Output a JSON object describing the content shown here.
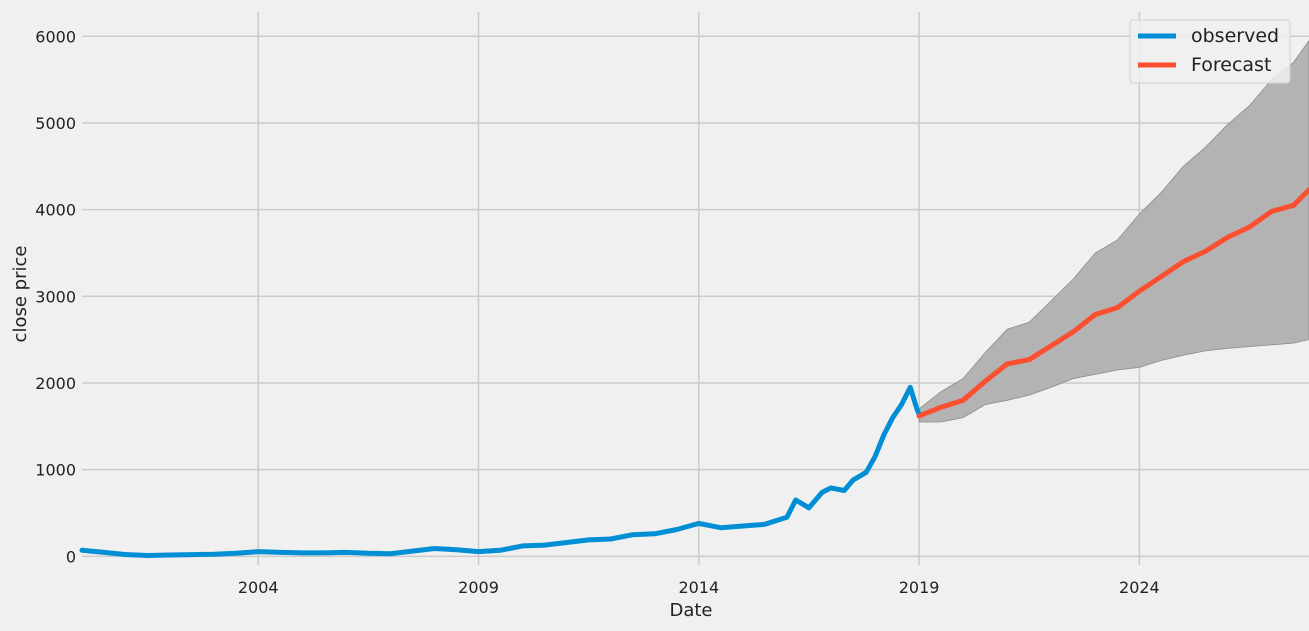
{
  "chart_data": {
    "type": "line",
    "title": "",
    "xlabel": "Date",
    "ylabel": "close price",
    "x_ticks": [
      2004,
      2009,
      2014,
      2019,
      2024
    ],
    "y_ticks": [
      0,
      1000,
      2000,
      3000,
      4000,
      5000,
      6000
    ],
    "xlim": [
      2000.0,
      2027.85
    ],
    "ylim": [
      -100,
      6280
    ],
    "grid": true,
    "legend": {
      "position": "top-right",
      "entries": [
        "observed",
        "Forecast"
      ]
    },
    "colors": {
      "observed": "#008fd5",
      "forecast": "#fc4f30",
      "interval": "#b3b3b3",
      "interval_edge": "#8c8c8c",
      "grid": "#cbcbcb",
      "background": "#f0f0f0"
    },
    "series": [
      {
        "name": "observed",
        "x": [
          2000.0,
          2000.5,
          2001.0,
          2001.5,
          2002.0,
          2002.5,
          2003.0,
          2003.5,
          2004.0,
          2004.5,
          2005.0,
          2005.5,
          2006.0,
          2006.5,
          2007.0,
          2007.5,
          2008.0,
          2008.5,
          2009.0,
          2009.5,
          2010.0,
          2010.5,
          2011.0,
          2011.5,
          2012.0,
          2012.5,
          2013.0,
          2013.5,
          2014.0,
          2014.5,
          2015.0,
          2015.5,
          2016.0,
          2016.2,
          2016.5,
          2016.8,
          2017.0,
          2017.3,
          2017.5,
          2017.8,
          2018.0,
          2018.2,
          2018.4,
          2018.6,
          2018.8,
          2018.95,
          2019.0
        ],
        "y": [
          70,
          45,
          20,
          10,
          15,
          20,
          25,
          35,
          55,
          45,
          40,
          40,
          45,
          35,
          30,
          60,
          90,
          75,
          55,
          70,
          120,
          130,
          160,
          190,
          200,
          250,
          260,
          310,
          380,
          330,
          350,
          370,
          450,
          650,
          560,
          740,
          790,
          760,
          880,
          970,
          1150,
          1400,
          1600,
          1750,
          1950,
          1700,
          1640
        ]
      },
      {
        "name": "Forecast",
        "x": [
          2019.0,
          2019.5,
          2020.0,
          2020.5,
          2021.0,
          2021.5,
          2022.0,
          2022.5,
          2023.0,
          2023.5,
          2024.0,
          2024.5,
          2025.0,
          2025.5,
          2026.0,
          2026.5,
          2027.0,
          2027.5,
          2027.85
        ],
        "y": [
          1620,
          1720,
          1800,
          2020,
          2220,
          2270,
          2430,
          2590,
          2790,
          2870,
          3060,
          3230,
          3400,
          3520,
          3680,
          3800,
          3980,
          4050,
          4230
        ]
      }
    ],
    "interval": {
      "x": [
        2019.0,
        2019.5,
        2020.0,
        2020.5,
        2021.0,
        2021.5,
        2022.0,
        2022.5,
        2023.0,
        2023.5,
        2024.0,
        2024.5,
        2025.0,
        2025.5,
        2026.0,
        2026.5,
        2027.0,
        2027.5,
        2027.85
      ],
      "upper": [
        1700,
        1900,
        2050,
        2350,
        2620,
        2700,
        2950,
        3200,
        3500,
        3650,
        3950,
        4200,
        4500,
        4720,
        4980,
        5200,
        5500,
        5700,
        5950
      ],
      "lower": [
        1550,
        1550,
        1600,
        1750,
        1800,
        1860,
        1950,
        2050,
        2100,
        2150,
        2180,
        2260,
        2320,
        2370,
        2400,
        2420,
        2440,
        2460,
        2500
      ]
    }
  }
}
